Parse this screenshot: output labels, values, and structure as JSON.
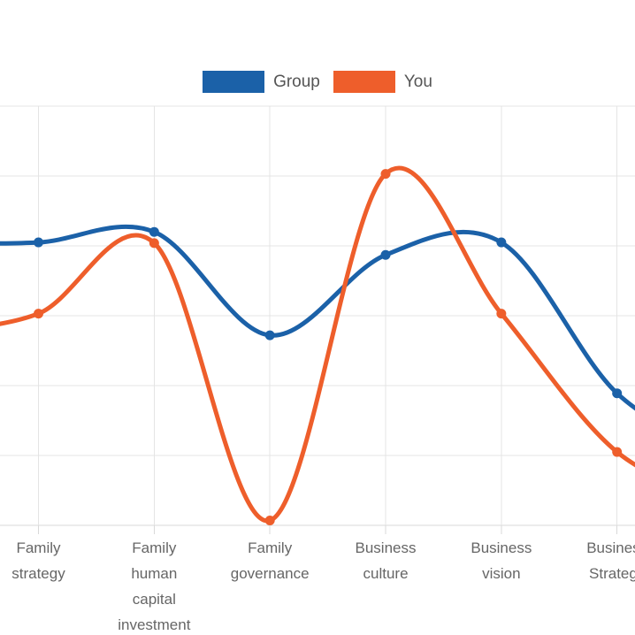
{
  "chart_data": {
    "type": "line",
    "title": "",
    "xlabel": "",
    "ylabel": "",
    "categories": [
      "Family strategy",
      "Family human capital investment",
      "Family governance",
      "Business culture",
      "Business vision",
      "Business Strategy"
    ],
    "series": [
      {
        "name": "Group",
        "color": "#1b61a8",
        "values": [
          4.05,
          4.2,
          2.72,
          3.87,
          4.05,
          1.89
        ],
        "offscreen_left": 4.03,
        "offscreen_right": 0.95
      },
      {
        "name": "You",
        "color": "#ee5e2b",
        "values": [
          3.03,
          4.04,
          0.07,
          5.03,
          3.03,
          1.05
        ],
        "offscreen_left": 2.75,
        "offscreen_right": 0.3
      }
    ],
    "ylim": [
      0,
      6
    ],
    "grid": {
      "horizontal_lines": 7,
      "color": "#e4e4e4",
      "axis_color": "#d9d9d9"
    },
    "legend_position": "top-center",
    "smoothing": "catmull-rom",
    "marker_radius": 5.5,
    "line_width": 5,
    "x_clipped_left_and_right": true
  },
  "text_colors": {
    "axis_label": "#666666",
    "legend": "#555555"
  }
}
